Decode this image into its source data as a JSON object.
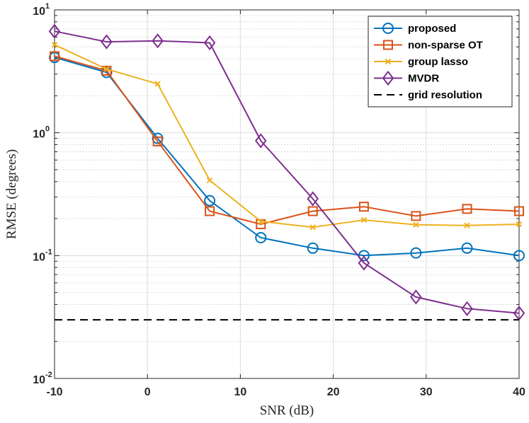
{
  "chart_data": {
    "type": "line",
    "title": "",
    "xlabel": "SNR (dB)",
    "ylabel": "RMSE (degrees)",
    "xlim": [
      -10,
      40
    ],
    "ylim": [
      0.01,
      10
    ],
    "yscale": "log",
    "grid": true,
    "legend_position": "top-right",
    "x_ticks": [
      -10,
      0,
      10,
      20,
      30,
      40
    ],
    "x_tick_labels": [
      "-10",
      "0",
      "10",
      "20",
      "30",
      "40"
    ],
    "y_ticks": [
      {
        "base": "10",
        "exp": "-2",
        "value": 0.01
      },
      {
        "base": "10",
        "exp": "-1",
        "value": 0.1
      },
      {
        "base": "10",
        "exp": "0",
        "value": 1
      },
      {
        "base": "10",
        "exp": "1",
        "value": 10
      }
    ],
    "x": [
      -10,
      -4.4,
      1.1,
      6.7,
      12.2,
      17.8,
      23.3,
      28.9,
      34.4,
      40
    ],
    "series": [
      {
        "name": "proposed",
        "color": "#0072BD",
        "marker": "circle",
        "values": [
          4.1,
          3.1,
          0.9,
          0.28,
          0.14,
          0.115,
          0.1,
          0.105,
          0.115,
          0.1
        ]
      },
      {
        "name": "non-sparse OT",
        "color": "#D95319",
        "marker": "square",
        "values": [
          4.2,
          3.2,
          0.85,
          0.23,
          0.18,
          0.23,
          0.25,
          0.21,
          0.24,
          0.23
        ]
      },
      {
        "name": "group lasso",
        "color": "#EDB120",
        "marker": "x",
        "values": [
          5.2,
          3.3,
          2.5,
          0.41,
          0.19,
          0.17,
          0.195,
          0.178,
          0.176,
          0.18
        ]
      },
      {
        "name": "MVDR",
        "color": "#7E2F8E",
        "marker": "diamond",
        "values": [
          6.7,
          5.5,
          5.6,
          5.4,
          0.86,
          0.29,
          0.087,
          0.046,
          0.037,
          0.034
        ]
      },
      {
        "name": "grid resolution",
        "color": "#000000",
        "marker": "none",
        "dashed": true,
        "values": [
          0.03,
          0.03,
          0.03,
          0.03,
          0.03,
          0.03,
          0.03,
          0.03,
          0.03,
          0.03
        ]
      }
    ]
  }
}
